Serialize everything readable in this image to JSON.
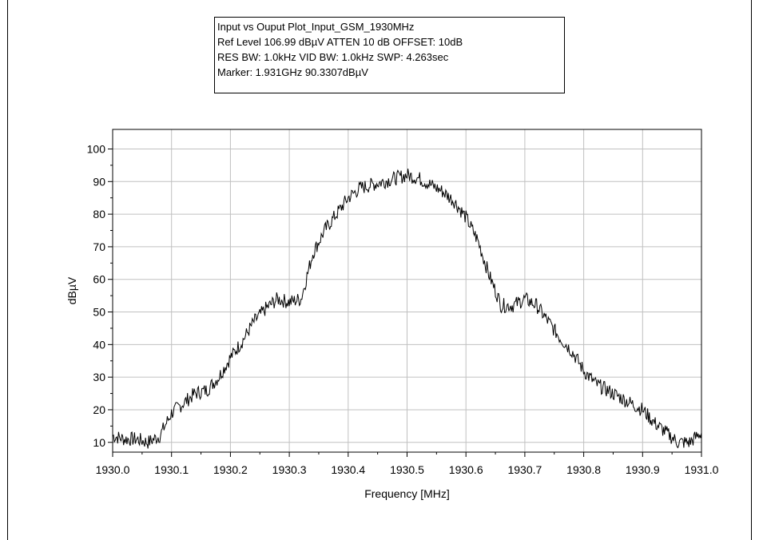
{
  "info_box": {
    "line1": "Input vs Ouput Plot_Input_GSM_1930MHz",
    "line2": "Ref Level 106.99 dBµV    ATTEN 10 dB    OFFSET: 10dB",
    "line3": "RES BW: 1.0kHz  VID BW: 1.0kHz  SWP: 4.263sec",
    "line4": "Marker: 1.931GHz  90.3307dBµV"
  },
  "chart_data": {
    "type": "line",
    "xlabel": "Frequency [MHz]",
    "ylabel": "dBµV",
    "xlim": [
      1930.0,
      1931.0
    ],
    "ylim": [
      7,
      106
    ],
    "x_ticks": [
      1930.0,
      1930.1,
      1930.2,
      1930.3,
      1930.4,
      1930.5,
      1930.6,
      1930.7,
      1930.8,
      1930.9,
      1931.0
    ],
    "x_tick_labels": [
      "1930.0",
      "1930.1",
      "1930.2",
      "1930.3",
      "1930.4",
      "1930.5",
      "1930.6",
      "1930.7",
      "1930.8",
      "1930.9",
      "1931.0"
    ],
    "y_ticks": [
      10,
      20,
      30,
      40,
      50,
      60,
      70,
      80,
      90,
      100
    ],
    "y_tick_labels": [
      "10",
      "20",
      "30",
      "40",
      "50",
      "60",
      "70",
      "80",
      "90",
      "100"
    ],
    "grid": true,
    "line_color": "#000000",
    "grid_color": "#c0c0c0",
    "series": [
      {
        "x": [
          1930.0,
          1930.02,
          1930.04,
          1930.06,
          1930.08,
          1930.1,
          1930.12,
          1930.14,
          1930.16,
          1930.18,
          1930.2,
          1930.22,
          1930.24,
          1930.26,
          1930.28,
          1930.3,
          1930.32,
          1930.34,
          1930.36,
          1930.38,
          1930.4,
          1930.42,
          1930.44,
          1930.46,
          1930.48,
          1930.5,
          1930.52,
          1930.54,
          1930.56,
          1930.58,
          1930.6,
          1930.62,
          1930.64,
          1930.66,
          1930.68,
          1930.7,
          1930.72,
          1930.74,
          1930.76,
          1930.78,
          1930.8,
          1930.82,
          1930.84,
          1930.86,
          1930.88,
          1930.9,
          1930.92,
          1930.94,
          1930.96,
          1930.98,
          1931.0
        ],
        "values": [
          12,
          11,
          11,
          10,
          12,
          19,
          22,
          25,
          26,
          30,
          36,
          41,
          47,
          51,
          54,
          53,
          54,
          68,
          75,
          80,
          85,
          88,
          89,
          90,
          91,
          92,
          91,
          89,
          87,
          84,
          79,
          72,
          61,
          52,
          52,
          54,
          52,
          47,
          42,
          38,
          32,
          28,
          26,
          24,
          22,
          20,
          16,
          13,
          10,
          10,
          13
        ]
      }
    ]
  }
}
